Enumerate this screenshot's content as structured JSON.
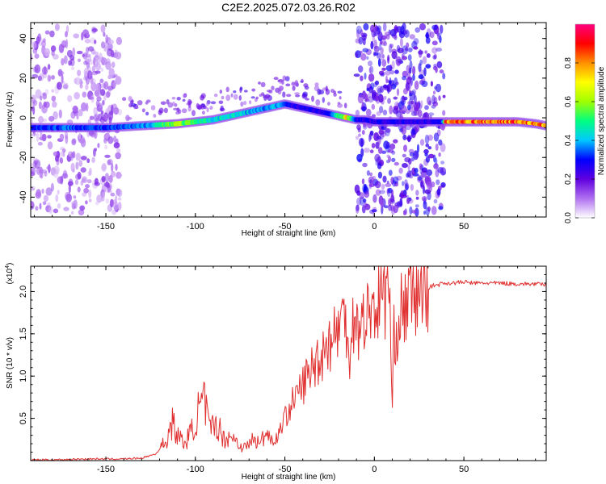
{
  "figure": {
    "title": "C2E2.2025.072.03.26.R02"
  },
  "chart_data": [
    {
      "type": "heatmap",
      "xlabel": "Height of straight line (km)",
      "ylabel": "Frequency (Hz)",
      "xlim": [
        -192,
        96
      ],
      "ylim": [
        -50,
        48
      ],
      "x_ticks": [
        "-150",
        "-100",
        "-50",
        "0",
        "50"
      ],
      "x_tick_values": [
        -150,
        -100,
        -50,
        0,
        50
      ],
      "y_ticks": [
        "-40",
        "-20",
        "0",
        "20",
        "40"
      ],
      "y_tick_values": [
        -40,
        -20,
        0,
        20,
        40
      ],
      "colorbar": {
        "label": "Normalized spectral amplitude",
        "range": [
          0,
          1
        ],
        "ticks": [
          "0.0",
          "0.2",
          "0.4",
          "0.6",
          "0.8"
        ],
        "tick_values": [
          0,
          0.2,
          0.4,
          0.6,
          0.8
        ],
        "colors": [
          "#ffffff",
          "#b070f0",
          "#6000e0",
          "#0000ff",
          "#00c8ff",
          "#00ff80",
          "#a0ff00",
          "#ffff00",
          "#ff9000",
          "#ff0000",
          "#ff0080"
        ]
      },
      "ridge": {
        "x": [
          -192,
          -170,
          -150,
          -130,
          -110,
          -100,
          -90,
          -80,
          -70,
          -60,
          -55,
          -50,
          -45,
          -40,
          -35,
          -30,
          -25,
          -20,
          -15,
          -10,
          -5,
          0,
          10,
          20,
          30,
          38,
          40,
          50,
          60,
          70,
          80,
          90,
          96
        ],
        "frequency": [
          -5,
          -5,
          -5,
          -4,
          -3,
          -2,
          -1,
          1,
          3,
          5,
          6,
          7,
          6,
          5,
          4,
          3,
          2,
          1,
          0,
          -1,
          -1,
          -2,
          -2,
          -2,
          -2,
          -2,
          -2,
          -2,
          -2,
          -2,
          -2,
          -3,
          -4
        ],
        "amplitude": [
          0.35,
          0.4,
          0.35,
          0.4,
          0.7,
          0.55,
          0.5,
          0.5,
          0.45,
          0.4,
          0.45,
          0.4,
          0.3,
          0.3,
          0.3,
          0.3,
          0.3,
          0.6,
          0.8,
          0.3,
          0.3,
          0.3,
          0.3,
          0.3,
          0.3,
          0.3,
          0.95,
          0.95,
          0.95,
          0.95,
          0.95,
          0.9,
          0.9
        ]
      },
      "noise_bands_x": [
        [
          -192,
          -142
        ],
        [
          -10,
          39
        ]
      ]
    },
    {
      "type": "line",
      "xlabel": "Height of straight line (km)",
      "ylabel": "SNR (10 * v/v)",
      "y_scale_label": "(x10",
      "y_scale_exp": "4",
      "y_scale_close": ")",
      "xlim": [
        -192,
        96
      ],
      "ylim": [
        0,
        2.3
      ],
      "x_ticks": [
        "-150",
        "-100",
        "-50",
        "0",
        "50"
      ],
      "x_tick_values": [
        -150,
        -100,
        -50,
        0,
        50
      ],
      "y_ticks": [
        "0.5",
        "1.0",
        "1.5",
        "2.0"
      ],
      "y_tick_values": [
        0.5,
        1.0,
        1.5,
        2.0
      ],
      "line_color": "#e03030",
      "series": [
        {
          "x": [
            -192,
            -180,
            -160,
            -140,
            -130,
            -122,
            -116,
            -113,
            -110,
            -106,
            -102,
            -98,
            -95,
            -92,
            -88,
            -84,
            -80,
            -76,
            -72,
            -68,
            -64,
            -60,
            -56,
            -52,
            -48,
            -44,
            -40,
            -36,
            -32,
            -28,
            -26,
            -24,
            -20,
            -16,
            -14,
            -12,
            -10,
            -8,
            -6,
            -4,
            -2,
            0,
            2,
            4,
            6,
            8,
            9,
            10,
            11,
            12,
            14,
            16,
            18,
            20,
            22,
            24,
            26,
            28,
            30,
            32,
            34,
            36,
            38,
            40,
            44,
            48,
            52,
            56,
            60,
            70,
            80,
            90,
            96
          ],
          "values": [
            0.01,
            0.01,
            0.02,
            0.02,
            0.03,
            0.08,
            0.25,
            0.45,
            0.3,
            0.2,
            0.35,
            0.6,
            0.7,
            0.35,
            0.45,
            0.25,
            0.3,
            0.2,
            0.15,
            0.25,
            0.2,
            0.35,
            0.2,
            0.4,
            0.6,
            0.75,
            0.9,
            1.05,
            1.2,
            1.3,
            1.45,
            1.4,
            1.6,
            1.7,
            1.3,
            1.6,
            1.8,
            1.4,
            1.75,
            1.7,
            1.85,
            1.8,
            1.9,
            2.0,
            1.95,
            2.25,
            1.5,
            0.55,
            1.5,
            1.55,
            1.7,
            1.8,
            1.85,
            1.9,
            1.95,
            1.98,
            2.0,
            2.02,
            2.05,
            2.06,
            2.08,
            2.08,
            2.1,
            2.1,
            2.1,
            2.11,
            2.11,
            2.1,
            2.1,
            2.1,
            2.09,
            2.09,
            2.08
          ]
        }
      ]
    }
  ]
}
